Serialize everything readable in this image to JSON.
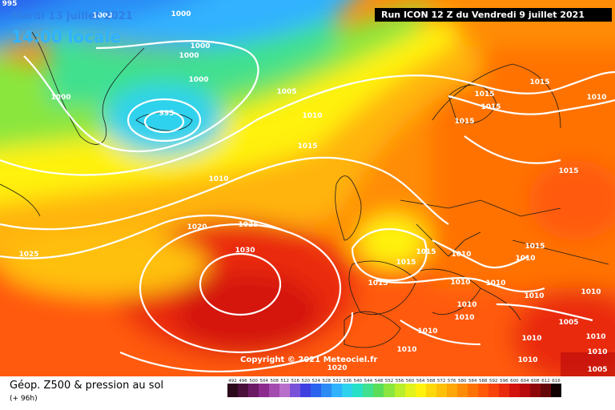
{
  "header": {
    "date": "Mardi 13 juillet 2021",
    "time": "14:00 locale",
    "run": "Run ICON 12 Z du Vendredi 9 juillet 2021"
  },
  "copyright": "Copyright © 2021 Meteociel.fr",
  "legend": {
    "title": "Géop. Z500 & pression au sol",
    "subtitle": "(+ 96h)",
    "scale": [
      {
        "label": "492",
        "color": "#2b0b1b"
      },
      {
        "label": "496",
        "color": "#4a0f3b"
      },
      {
        "label": "500",
        "color": "#6d1a66"
      },
      {
        "label": "504",
        "color": "#8b2b8e"
      },
      {
        "label": "508",
        "color": "#a44bb0"
      },
      {
        "label": "512",
        "color": "#b86fcc"
      },
      {
        "label": "516",
        "color": "#7a52d9"
      },
      {
        "label": "520",
        "color": "#3d3fe0"
      },
      {
        "label": "524",
        "color": "#2a63ee"
      },
      {
        "label": "528",
        "color": "#2c8bf5"
      },
      {
        "label": "532",
        "color": "#31b2ff"
      },
      {
        "label": "536",
        "color": "#2fd2ee"
      },
      {
        "label": "540",
        "color": "#27e0c8"
      },
      {
        "label": "544",
        "color": "#3fe08f"
      },
      {
        "label": "548",
        "color": "#5ade5a"
      },
      {
        "label": "552",
        "color": "#8ae63e"
      },
      {
        "label": "556",
        "color": "#b9ee2c"
      },
      {
        "label": "560",
        "color": "#e2f21c"
      },
      {
        "label": "564",
        "color": "#fff20f"
      },
      {
        "label": "568",
        "color": "#ffd80c"
      },
      {
        "label": "572",
        "color": "#ffc00a"
      },
      {
        "label": "576",
        "color": "#ffa608"
      },
      {
        "label": "580",
        "color": "#ff8c06"
      },
      {
        "label": "584",
        "color": "#ff7205"
      },
      {
        "label": "588",
        "color": "#ff5a08"
      },
      {
        "label": "592",
        "color": "#f7420c"
      },
      {
        "label": "596",
        "color": "#ea2a0e"
      },
      {
        "label": "600",
        "color": "#d4120e"
      },
      {
        "label": "604",
        "color": "#b8090c"
      },
      {
        "label": "608",
        "color": "#8f060a"
      },
      {
        "label": "612",
        "color": "#640507"
      },
      {
        "label": "616",
        "color": "#100002"
      }
    ]
  },
  "isobar_labels": [
    "995",
    "1000",
    "1000",
    "1000",
    "1000",
    "1000",
    "1000",
    "995",
    "1005",
    "1010",
    "1015",
    "1010",
    "1020",
    "1025",
    "1025",
    "1030",
    "1015",
    "1015",
    "1015",
    "1015",
    "1010",
    "1015",
    "1015",
    "1015",
    "1015",
    "1010",
    "1010",
    "1010",
    "1010",
    "1010",
    "1010",
    "1010",
    "1010",
    "1015",
    "1010",
    "1005",
    "1010",
    "1010",
    "1020",
    "1010",
    "1010",
    "1005",
    "1010"
  ]
}
